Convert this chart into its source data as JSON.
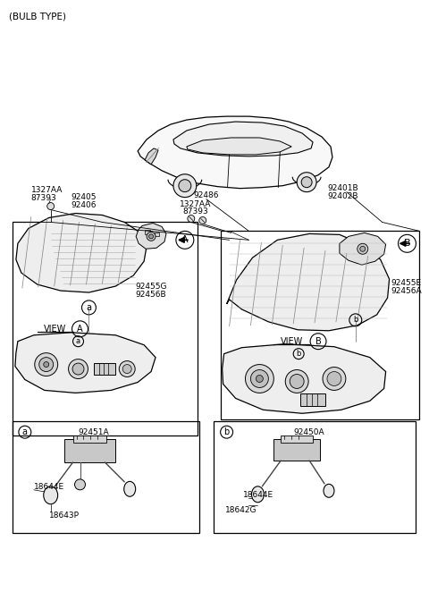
{
  "bg_color": "#ffffff",
  "line_color": "#000000",
  "text_color": "#000000",
  "font_size_small": 6.5,
  "labels": {
    "bulb_type": "(BULB TYPE)",
    "tl1": "1327AA",
    "tl2": "87393",
    "tl3": "92405",
    "tl4": "92406",
    "tr1": "92401B",
    "tr2": "92402B",
    "mc1": "92486",
    "mc2": "1327AA",
    "mc3": "87393",
    "lp1": "92455G",
    "lp2": "92456B",
    "rp1": "92455E",
    "rp2": "92456A",
    "view_a": "VIEW",
    "circle_A": "A",
    "view_b": "VIEW",
    "circle_B": "B",
    "ba_lbl": "a",
    "bb_lbl": "b",
    "ba1": "92451A",
    "ba2": "18644E",
    "ba3": "18643P",
    "bb1": "92450A",
    "bb2": "18644E",
    "bb3": "18642G"
  }
}
